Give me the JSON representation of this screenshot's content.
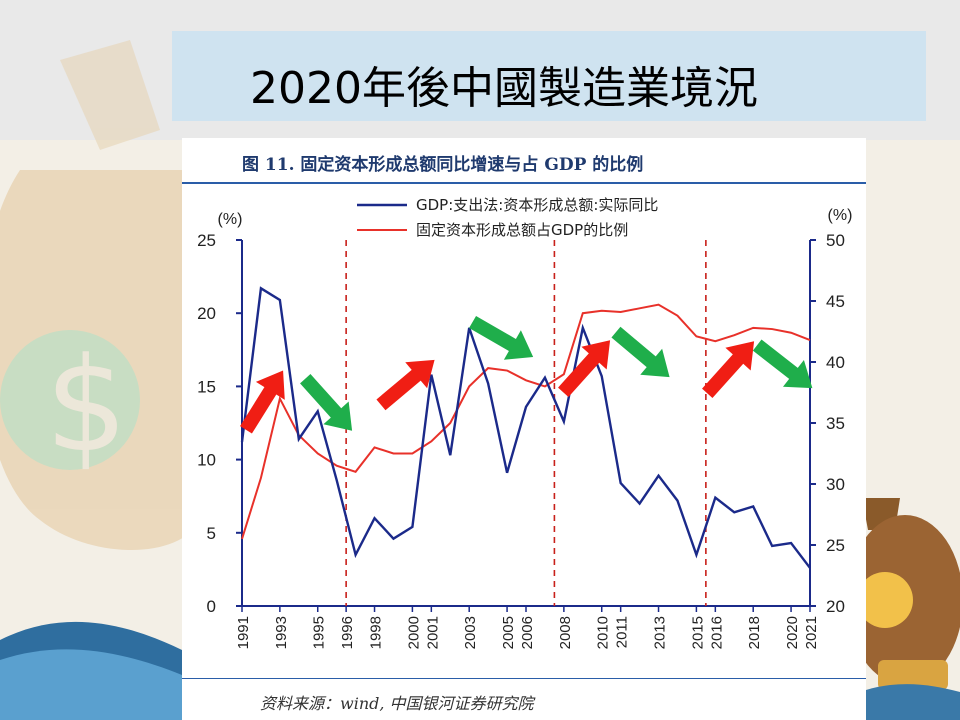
{
  "slide": {
    "title": "2020年後中國製造業境況"
  },
  "figure": {
    "title": "图 11. 固定资本形成总额同比增速与占 GDP 的比例",
    "source": "资料来源：wind, 中国银河证券研究院"
  },
  "colors": {
    "navy": "#1b2a8a",
    "red": "#e8312a",
    "green": "#1fae4b",
    "arrowRed": "#f01e14",
    "axis": "#1b2a8a"
  },
  "chart_data": {
    "type": "line",
    "x": [
      1991,
      1992,
      1993,
      1994,
      1995,
      1996,
      1997,
      1998,
      1999,
      2000,
      2001,
      2002,
      2003,
      2004,
      2005,
      2006,
      2007,
      2008,
      2009,
      2010,
      2011,
      2012,
      2013,
      2014,
      2015,
      2016,
      2017,
      2018,
      2019,
      2020,
      2021
    ],
    "xticks": [
      "1991",
      "1993",
      "1995",
      "1996",
      "1998",
      "2000",
      "2001",
      "2003",
      "2005",
      "2006",
      "2008",
      "2010",
      "2011",
      "2013",
      "2015",
      "2016",
      "2018",
      "2020",
      "2021"
    ],
    "xtick_years": [
      1991,
      1993,
      1995,
      1996.5,
      1998,
      2000,
      2001,
      2003,
      2005,
      2006,
      2008,
      2010,
      2011,
      2013,
      2015,
      2016,
      2018,
      2020,
      2021
    ],
    "series": [
      {
        "name": "GDP:支出法:资本形成总额:实际同比",
        "axis": "left",
        "values": [
          11.2,
          21.7,
          20.9,
          11.4,
          13.3,
          8.6,
          3.5,
          6,
          4.6,
          5.4,
          15.8,
          10.3,
          19,
          15.2,
          9.1,
          13.6,
          15.6,
          12.6,
          19,
          15.7,
          8.4,
          7,
          8.9,
          7.2,
          3.5,
          7.4,
          6.4,
          6.8,
          4.1,
          4.3,
          2.6
        ]
      },
      {
        "name": "固定资本形成总额占GDP的比例",
        "axis": "right",
        "values": [
          25.5,
          30.5,
          37,
          34,
          32.5,
          31.5,
          31,
          33,
          32.5,
          32.5,
          33.5,
          35,
          38,
          39.5,
          39.3,
          38.5,
          38,
          39,
          44,
          44.2,
          44.1,
          44.4,
          44.7,
          43.8,
          42.1,
          41.7,
          42.2,
          42.8,
          42.7,
          42.4,
          41.8
        ]
      }
    ],
    "y_left": {
      "label": "(%)",
      "range": [
        0,
        25
      ],
      "ticks": [
        0,
        5,
        10,
        15,
        20,
        25
      ]
    },
    "y_right": {
      "label": "(%)",
      "range": [
        20,
        50
      ],
      "ticks": [
        20,
        25,
        30,
        35,
        40,
        45,
        50
      ]
    },
    "dividers": [
      1996.5,
      2007.5,
      2015.5
    ],
    "legend_position": "top"
  }
}
